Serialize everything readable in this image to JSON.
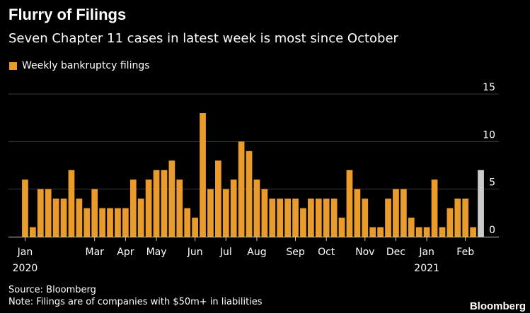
{
  "title": "Flurry of Filings",
  "subtitle": "Seven Chapter 11 cases in latest week is most since October",
  "source": "Source: Bloomberg",
  "note": "Note: Filings are of companies with $50m+ in liabilities",
  "brand": "Bloomberg",
  "colors": {
    "bar": "#e99b2b",
    "highlight": "#cccccc",
    "grid": "#3a3a3a",
    "text": "#ffffff",
    "axis": "#cccccc"
  },
  "chart_data": {
    "type": "bar",
    "legend": "Weekly bankruptcy filings",
    "values": [
      6,
      1,
      5,
      5,
      4,
      4,
      7,
      4,
      3,
      5,
      3,
      3,
      3,
      3,
      6,
      4,
      6,
      7,
      7,
      8,
      6,
      3,
      2,
      13,
      5,
      8,
      5,
      6,
      10,
      9,
      6,
      5,
      4,
      4,
      4,
      4,
      3,
      4,
      4,
      4,
      4,
      2,
      7,
      5,
      4,
      1,
      1,
      4,
      5,
      5,
      2,
      1,
      1,
      6,
      1,
      3,
      4,
      4,
      1,
      7
    ],
    "highlight_index": 59,
    "ylim": [
      0,
      15
    ],
    "yticks": [
      0,
      5,
      10,
      15
    ],
    "xticks": [
      {
        "label": "Jan",
        "year": "2020",
        "index": 0
      },
      {
        "label": "Mar",
        "year": "",
        "index": 9
      },
      {
        "label": "Apr",
        "year": "",
        "index": 13
      },
      {
        "label": "May",
        "year": "",
        "index": 17
      },
      {
        "label": "Jun",
        "year": "",
        "index": 22
      },
      {
        "label": "Jul",
        "year": "",
        "index": 26
      },
      {
        "label": "Aug",
        "year": "",
        "index": 30
      },
      {
        "label": "Sep",
        "year": "",
        "index": 35
      },
      {
        "label": "Oct",
        "year": "",
        "index": 39
      },
      {
        "label": "Nov",
        "year": "",
        "index": 44
      },
      {
        "label": "Dec",
        "year": "",
        "index": 48
      },
      {
        "label": "Jan",
        "year": "2021",
        "index": 52
      },
      {
        "label": "Feb",
        "year": "",
        "index": 57
      }
    ]
  }
}
